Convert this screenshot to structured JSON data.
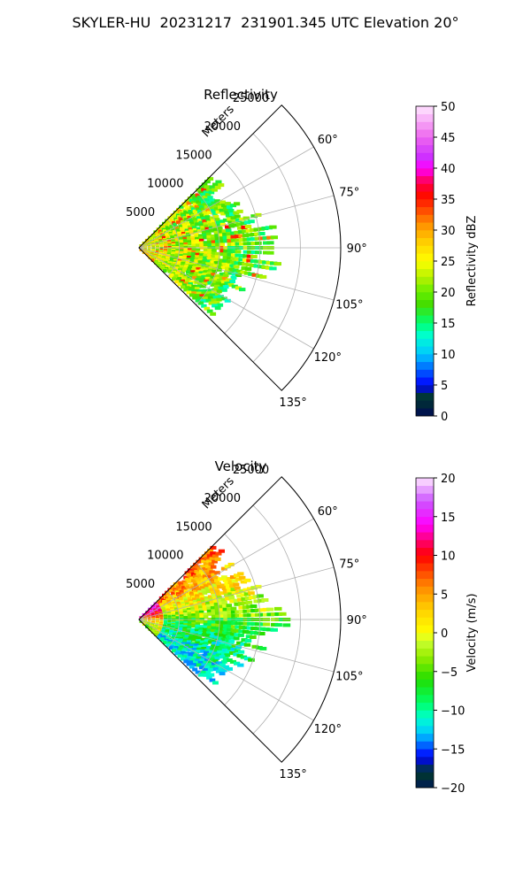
{
  "figure": {
    "title": "SKYLER-HU  20231217  231901.345 UTC Elevation 20°"
  },
  "chart_data": [
    {
      "type": "heatmap",
      "projection": "polar-sector",
      "title": "Reflectivity",
      "radial_label": "Meters",
      "radial_ticks": [
        5000,
        10000,
        15000,
        20000,
        25000
      ],
      "radial_tick_labels": [
        "5000",
        "10000",
        "15000",
        "20000",
        "25000"
      ],
      "radial_range": [
        0,
        25000
      ],
      "azimuth_ticks": [
        60,
        75,
        90,
        105,
        120,
        135
      ],
      "azimuth_tick_labels": [
        "60°",
        "75°",
        "90°",
        "105°",
        "120°",
        "135°"
      ],
      "azimuth_range": [
        45,
        135
      ],
      "grid": true,
      "colorbar": {
        "label": "Reflectivity dBZ",
        "range": [
          0,
          50
        ],
        "ticks": [
          0,
          5,
          10,
          15,
          20,
          25,
          30,
          35,
          40,
          45,
          50
        ],
        "tick_labels": [
          "0",
          "5",
          "10",
          "15",
          "20",
          "25",
          "30",
          "35",
          "40",
          "45",
          "50"
        ],
        "stops": [
          [
            0,
            "#000a55"
          ],
          [
            3,
            "#003a2a"
          ],
          [
            5,
            "#0000ff"
          ],
          [
            8,
            "#0077ff"
          ],
          [
            10,
            "#00c8ff"
          ],
          [
            13,
            "#00ffd0"
          ],
          [
            15,
            "#00ff70"
          ],
          [
            18,
            "#44dd00"
          ],
          [
            20,
            "#66ee00"
          ],
          [
            22,
            "#aaf000"
          ],
          [
            25,
            "#ffff00"
          ],
          [
            28,
            "#ffd000"
          ],
          [
            31,
            "#ff9000"
          ],
          [
            34,
            "#ff3300"
          ],
          [
            36,
            "#ff0000"
          ],
          [
            38,
            "#ff0066"
          ],
          [
            40,
            "#ff00ff"
          ],
          [
            42,
            "#cc33ff"
          ],
          [
            45,
            "#ee66ee"
          ],
          [
            50,
            "#ffe6ff"
          ]
        ]
      },
      "echo": {
        "r_max": [
          13000,
          12500,
          13500,
          15000,
          18500,
          16000,
          14500,
          13000,
          12000
        ],
        "azimuths": [
          46,
          55,
          65,
          75,
          90,
          100,
          110,
          120,
          133
        ],
        "value_range": [
          10,
          37
        ]
      }
    },
    {
      "type": "heatmap",
      "projection": "polar-sector",
      "title": "Velocity",
      "radial_label": "Meters",
      "radial_ticks": [
        5000,
        10000,
        15000,
        20000,
        25000
      ],
      "radial_tick_labels": [
        "5000",
        "10000",
        "15000",
        "20000",
        "25000"
      ],
      "radial_range": [
        0,
        25000
      ],
      "azimuth_ticks": [
        60,
        75,
        90,
        105,
        120,
        135
      ],
      "azimuth_tick_labels": [
        "60°",
        "75°",
        "90°",
        "105°",
        "120°",
        "135°"
      ],
      "azimuth_range": [
        45,
        135
      ],
      "grid": true,
      "colorbar": {
        "label": "Velocity (m/s)",
        "range": [
          -20,
          20
        ],
        "ticks": [
          -20,
          -15,
          -10,
          -5,
          0,
          5,
          10,
          15,
          20
        ],
        "tick_labels": [
          "−20",
          "−15",
          "−10",
          "−5",
          "0",
          "5",
          "10",
          "15",
          "20"
        ],
        "stops": [
          [
            -20,
            "#001a55"
          ],
          [
            -18,
            "#003a2a"
          ],
          [
            -16,
            "#0000ff"
          ],
          [
            -13,
            "#00c8ff"
          ],
          [
            -11,
            "#00ffd0"
          ],
          [
            -9,
            "#00ff66"
          ],
          [
            -6,
            "#22dd00"
          ],
          [
            -3,
            "#99ee00"
          ],
          [
            -1,
            "#ccff33"
          ],
          [
            0,
            "#ffff00"
          ],
          [
            3,
            "#ffd000"
          ],
          [
            6,
            "#ff8800"
          ],
          [
            8,
            "#ff4400"
          ],
          [
            10,
            "#ff0000"
          ],
          [
            12,
            "#ff0077"
          ],
          [
            14,
            "#ff00ff"
          ],
          [
            17,
            "#cc55ff"
          ],
          [
            20,
            "#ffe6ff"
          ]
        ]
      },
      "echo": {
        "r_max": [
          13000,
          12500,
          13500,
          15000,
          18500,
          16000,
          14500,
          13000,
          12000
        ],
        "azimuths": [
          46,
          55,
          65,
          75,
          90,
          100,
          110,
          120,
          133
        ],
        "value_range": [
          -14,
          18
        ]
      }
    }
  ]
}
